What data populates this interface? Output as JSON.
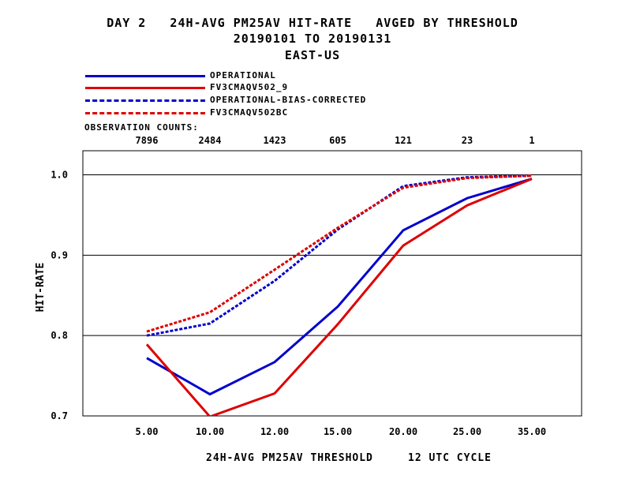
{
  "chart_data": {
    "type": "line",
    "title_lines": [
      "DAY 2   24H-AVG PM25AV HIT-RATE   AVGED BY THRESHOLD",
      "20190101 TO 20190131",
      "EAST-US"
    ],
    "xlabel": "24H-AVG PM25AV THRESHOLD     12 UTC CYCLE",
    "ylabel": "HIT-RATE",
    "categories": [
      "5.00",
      "10.00",
      "12.00",
      "15.00",
      "20.00",
      "25.00",
      "35.00"
    ],
    "observation_counts_label": "OBSERVATION COUNTS:",
    "observation_counts": [
      "7896",
      "2484",
      "1423",
      "605",
      "121",
      "23",
      "1"
    ],
    "ylim": [
      0.7,
      1.03
    ],
    "yticks": [
      "0.7",
      "0.8",
      "0.9",
      "1.0"
    ],
    "ytick_values": [
      0.7,
      0.8,
      0.9,
      1.0
    ],
    "grid": "horizontal",
    "legend_position": "top-left",
    "series": [
      {
        "name": "OPERATIONAL",
        "color": "#0000cc",
        "style": "solid",
        "values": [
          0.772,
          0.727,
          0.767,
          0.836,
          0.931,
          0.971,
          0.995
        ]
      },
      {
        "name": "FV3CMAQV502_9",
        "color": "#dd0000",
        "style": "solid",
        "values": [
          0.789,
          0.699,
          0.728,
          0.814,
          0.912,
          0.962,
          0.995
        ]
      },
      {
        "name": "OPERATIONAL-BIAS-CORRECTED",
        "color": "#0000cc",
        "style": "dashed",
        "values": [
          0.8,
          0.815,
          0.868,
          0.932,
          0.986,
          0.997,
          0.999
        ]
      },
      {
        "name": "FV3CMAQV502BC",
        "color": "#dd0000",
        "style": "dashed",
        "values": [
          0.805,
          0.829,
          0.882,
          0.934,
          0.984,
          0.996,
          0.999
        ]
      }
    ]
  }
}
